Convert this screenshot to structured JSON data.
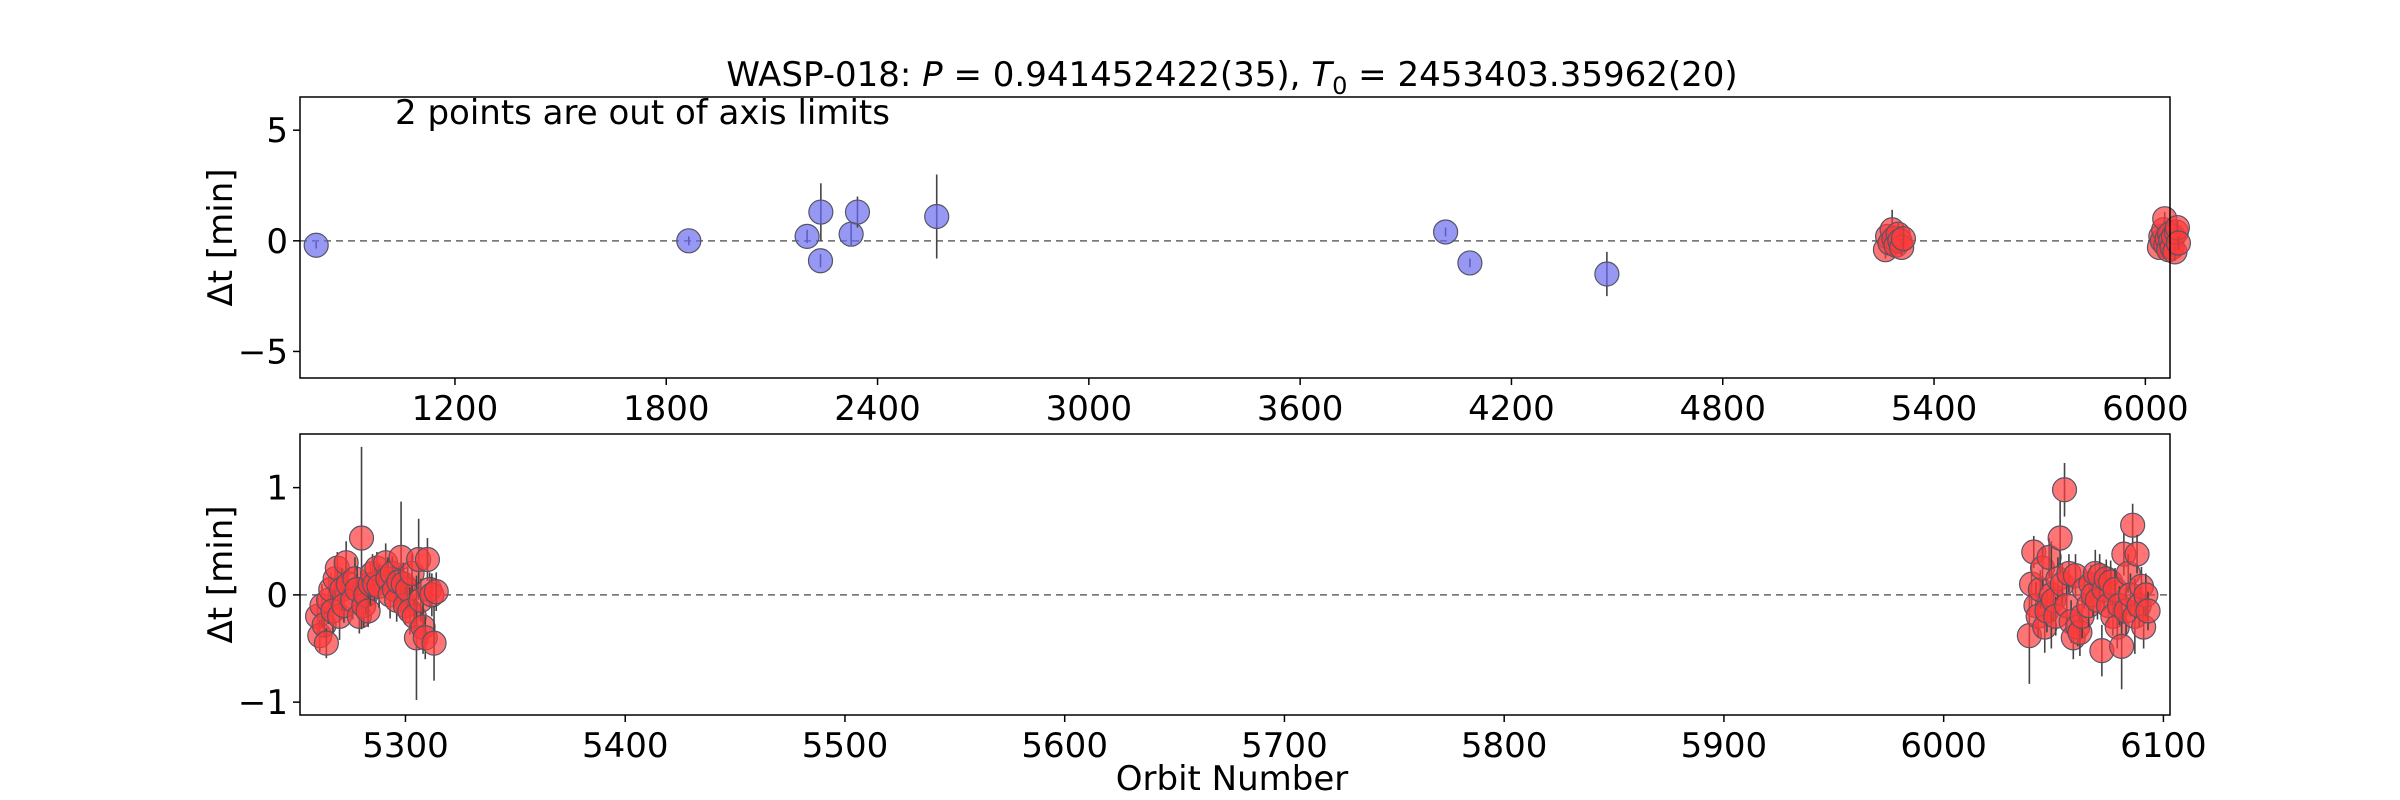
{
  "chart_data": [
    {
      "type": "scatter",
      "title": "WASP-018: $P = 0.941452422(35), T_0 = 2453403.35962(20)",
      "title_parts": {
        "prefix": "WASP-018: ",
        "p_symbol": "P",
        "p_value": " = 0.941452422(35), ",
        "t_symbol": "T",
        "t_sub": "0",
        "t_value": " = 2453403.35962(20)"
      },
      "annotation": "2 points are out of axis limits",
      "xlabel": "",
      "ylabel": "Δt [min]",
      "xlim": [
        760,
        6070
      ],
      "ylim": [
        -6.2,
        6.5
      ],
      "xticks": [
        1200,
        1800,
        2400,
        3000,
        3600,
        4200,
        4800,
        5400,
        6000
      ],
      "yticks": [
        -5,
        0,
        5
      ],
      "reference_line": 0,
      "grid": false,
      "series": [
        {
          "color": "#6b6bef",
          "points": [
            {
              "x": 806,
              "y": -0.2,
              "err": 0.15
            },
            {
              "x": 1864,
              "y": 0.0,
              "err": 0.2
            },
            {
              "x": 2200,
              "y": 0.2,
              "err": 0.3
            },
            {
              "x": 2238,
              "y": -0.9,
              "err": 0.3
            },
            {
              "x": 2239,
              "y": 1.3,
              "err": 1.3
            },
            {
              "x": 2325,
              "y": 0.3,
              "err": 0.5
            },
            {
              "x": 2343,
              "y": 1.3,
              "err": 0.7
            },
            {
              "x": 2568,
              "y": 1.1,
              "err": 1.9
            },
            {
              "x": 4013,
              "y": 0.4,
              "err": 0.2
            },
            {
              "x": 4082,
              "y": -1.0,
              "err": 0.2
            },
            {
              "x": 4471,
              "y": -1.5,
              "err": 1.0
            }
          ]
        },
        {
          "color": "#ff3b3b",
          "points": [
            {
              "x": 5262,
              "y": -0.4,
              "err": 0.4
            },
            {
              "x": 5268,
              "y": 0.2,
              "err": 0.4
            },
            {
              "x": 5275,
              "y": -0.1,
              "err": 0.5
            },
            {
              "x": 5281,
              "y": 0.5,
              "err": 0.9
            },
            {
              "x": 5286,
              "y": 0.1,
              "err": 0.3
            },
            {
              "x": 5292,
              "y": -0.2,
              "err": 0.4
            },
            {
              "x": 5298,
              "y": 0.3,
              "err": 0.5
            },
            {
              "x": 5303,
              "y": 0.0,
              "err": 0.6
            },
            {
              "x": 5308,
              "y": -0.3,
              "err": 0.4
            },
            {
              "x": 5313,
              "y": 0.1,
              "err": 0.5
            },
            {
              "x": 6040,
              "y": -0.3,
              "err": 0.4
            },
            {
              "x": 6044,
              "y": 0.2,
              "err": 0.4
            },
            {
              "x": 6048,
              "y": 0.0,
              "err": 0.5
            },
            {
              "x": 6052,
              "y": 0.5,
              "err": 0.4
            },
            {
              "x": 6055,
              "y": 1.0,
              "err": 0.3
            },
            {
              "x": 6058,
              "y": -0.2,
              "err": 0.4
            },
            {
              "x": 6062,
              "y": 0.1,
              "err": 0.4
            },
            {
              "x": 6066,
              "y": -0.4,
              "err": 0.3
            },
            {
              "x": 6069,
              "y": 0.3,
              "err": 0.5
            },
            {
              "x": 6072,
              "y": 0.0,
              "err": 0.4
            },
            {
              "x": 6076,
              "y": -0.3,
              "err": 0.4
            },
            {
              "x": 6080,
              "y": 0.2,
              "err": 0.3
            },
            {
              "x": 6084,
              "y": -0.5,
              "err": 0.4
            },
            {
              "x": 6088,
              "y": 0.4,
              "err": 0.5
            },
            {
              "x": 6091,
              "y": 0.6,
              "err": 0.3
            },
            {
              "x": 6094,
              "y": -0.1,
              "err": 0.3
            }
          ]
        }
      ]
    },
    {
      "type": "scatter",
      "title": "",
      "xlabel": "Orbit Number",
      "ylabel": "Δt [min]",
      "xlim": [
        5252,
        6103
      ],
      "ylim": [
        -1.12,
        1.5
      ],
      "xticks": [
        5300,
        5400,
        5500,
        5600,
        5700,
        5800,
        5900,
        6000,
        6100
      ],
      "yticks": [
        -1,
        0,
        1
      ],
      "reference_line": 0,
      "grid": false,
      "series": [
        {
          "color": "#ff3b3b",
          "points": [
            {
              "x": 5260,
              "y": -0.2,
              "err": 0.18
            },
            {
              "x": 5261,
              "y": -0.38,
              "err": 0.15
            },
            {
              "x": 5262,
              "y": -0.1,
              "err": 0.2
            },
            {
              "x": 5263,
              "y": -0.28,
              "err": 0.12
            },
            {
              "x": 5264,
              "y": -0.45,
              "err": 0.14
            },
            {
              "x": 5265,
              "y": -0.05,
              "err": 0.22
            },
            {
              "x": 5266,
              "y": 0.05,
              "err": 0.16
            },
            {
              "x": 5267,
              "y": -0.15,
              "err": 0.2
            },
            {
              "x": 5268,
              "y": 0.15,
              "err": 0.18
            },
            {
              "x": 5269,
              "y": 0.25,
              "err": 0.15
            },
            {
              "x": 5270,
              "y": -0.2,
              "err": 0.22
            },
            {
              "x": 5271,
              "y": 0.05,
              "err": 0.2
            },
            {
              "x": 5272,
              "y": -0.1,
              "err": 0.16
            },
            {
              "x": 5273,
              "y": 0.3,
              "err": 0.2
            },
            {
              "x": 5274,
              "y": 0.1,
              "err": 0.14
            },
            {
              "x": 5276,
              "y": -0.05,
              "err": 0.18
            },
            {
              "x": 5277,
              "y": 0.15,
              "err": 0.2
            },
            {
              "x": 5278,
              "y": 0.05,
              "err": 0.22
            },
            {
              "x": 5279,
              "y": -0.2,
              "err": 0.16
            },
            {
              "x": 5280,
              "y": 0.53,
              "err": 0.85
            },
            {
              "x": 5281,
              "y": -0.1,
              "err": 0.2
            },
            {
              "x": 5282,
              "y": 0.0,
              "err": 0.18
            },
            {
              "x": 5283,
              "y": -0.15,
              "err": 0.15
            },
            {
              "x": 5284,
              "y": 0.1,
              "err": 0.2
            },
            {
              "x": 5285,
              "y": 0.2,
              "err": 0.18
            },
            {
              "x": 5286,
              "y": 0.1,
              "err": 0.16
            },
            {
              "x": 5287,
              "y": 0.25,
              "err": 0.15
            },
            {
              "x": 5288,
              "y": 0.08,
              "err": 0.2
            },
            {
              "x": 5291,
              "y": 0.3,
              "err": 0.18
            },
            {
              "x": 5292,
              "y": 0.15,
              "err": 0.2
            },
            {
              "x": 5293,
              "y": 0.0,
              "err": 0.22
            },
            {
              "x": 5294,
              "y": 0.2,
              "err": 0.16
            },
            {
              "x": 5295,
              "y": 0.05,
              "err": 0.18
            },
            {
              "x": 5296,
              "y": -0.05,
              "err": 0.2
            },
            {
              "x": 5297,
              "y": 0.12,
              "err": 0.15
            },
            {
              "x": 5298,
              "y": 0.35,
              "err": 0.52
            },
            {
              "x": 5299,
              "y": 0.1,
              "err": 0.2
            },
            {
              "x": 5300,
              "y": -0.1,
              "err": 0.18
            },
            {
              "x": 5301,
              "y": 0.05,
              "err": 0.2
            },
            {
              "x": 5302,
              "y": -0.15,
              "err": 0.22
            },
            {
              "x": 5303,
              "y": 0.2,
              "err": 0.18
            },
            {
              "x": 5304,
              "y": -0.2,
              "err": 0.16
            },
            {
              "x": 5305,
              "y": -0.4,
              "err": 0.58
            },
            {
              "x": 5306,
              "y": 0.33,
              "err": 0.38
            },
            {
              "x": 5307,
              "y": -0.05,
              "err": 0.2
            },
            {
              "x": 5308,
              "y": -0.3,
              "err": 0.25
            },
            {
              "x": 5309,
              "y": -0.4,
              "err": 0.2
            },
            {
              "x": 5310,
              "y": 0.33,
              "err": 0.2
            },
            {
              "x": 5311,
              "y": 0.05,
              "err": 0.16
            },
            {
              "x": 5312,
              "y": 0.0,
              "err": 0.2
            },
            {
              "x": 5313,
              "y": -0.45,
              "err": 0.35
            },
            {
              "x": 5314,
              "y": 0.03,
              "err": 0.18
            },
            {
              "x": 6039,
              "y": -0.38,
              "err": 0.45
            },
            {
              "x": 6040,
              "y": 0.1,
              "err": 0.2
            },
            {
              "x": 6041,
              "y": 0.4,
              "err": 0.15
            },
            {
              "x": 6042,
              "y": -0.1,
              "err": 0.22
            },
            {
              "x": 6043,
              "y": -0.2,
              "err": 0.2
            },
            {
              "x": 6044,
              "y": 0.05,
              "err": 0.18
            },
            {
              "x": 6045,
              "y": 0.25,
              "err": 0.2
            },
            {
              "x": 6046,
              "y": -0.3,
              "err": 0.24
            },
            {
              "x": 6047,
              "y": -0.15,
              "err": 0.2
            },
            {
              "x": 6048,
              "y": 0.35,
              "err": 0.18
            },
            {
              "x": 6049,
              "y": 0.0,
              "err": 0.5
            },
            {
              "x": 6050,
              "y": -0.05,
              "err": 0.2
            },
            {
              "x": 6051,
              "y": -0.2,
              "err": 0.18
            },
            {
              "x": 6052,
              "y": 0.15,
              "err": 0.2
            },
            {
              "x": 6053,
              "y": 0.53,
              "err": 0.35
            },
            {
              "x": 6054,
              "y": 0.1,
              "err": 0.2
            },
            {
              "x": 6055,
              "y": 0.98,
              "err": 0.25
            },
            {
              "x": 6056,
              "y": -0.1,
              "err": 0.2
            },
            {
              "x": 6057,
              "y": 0.2,
              "err": 0.18
            },
            {
              "x": 6058,
              "y": -0.25,
              "err": 0.2
            },
            {
              "x": 6059,
              "y": -0.4,
              "err": 0.2
            },
            {
              "x": 6060,
              "y": 0.18,
              "err": 0.2
            },
            {
              "x": 6061,
              "y": -0.3,
              "err": 0.18
            },
            {
              "x": 6062,
              "y": -0.35,
              "err": 0.22
            },
            {
              "x": 6063,
              "y": -0.2,
              "err": 0.2
            },
            {
              "x": 6064,
              "y": 0.05,
              "err": 0.18
            },
            {
              "x": 6066,
              "y": -0.1,
              "err": 0.2
            },
            {
              "x": 6067,
              "y": 0.1,
              "err": 0.18
            },
            {
              "x": 6068,
              "y": 0.0,
              "err": 0.2
            },
            {
              "x": 6069,
              "y": 0.2,
              "err": 0.22
            },
            {
              "x": 6070,
              "y": -0.05,
              "err": 0.18
            },
            {
              "x": 6071,
              "y": 0.18,
              "err": 0.2
            },
            {
              "x": 6072,
              "y": -0.52,
              "err": 0.24
            },
            {
              "x": 6073,
              "y": 0.05,
              "err": 0.2
            },
            {
              "x": 6074,
              "y": 0.15,
              "err": 0.18
            },
            {
              "x": 6075,
              "y": -0.1,
              "err": 0.2
            },
            {
              "x": 6076,
              "y": 0.12,
              "err": 0.2
            },
            {
              "x": 6077,
              "y": -0.2,
              "err": 0.18
            },
            {
              "x": 6078,
              "y": 0.05,
              "err": 0.2
            },
            {
              "x": 6079,
              "y": -0.3,
              "err": 0.2
            },
            {
              "x": 6080,
              "y": -0.1,
              "err": 0.18
            },
            {
              "x": 6081,
              "y": -0.48,
              "err": 0.4
            },
            {
              "x": 6082,
              "y": 0.38,
              "err": 0.2
            },
            {
              "x": 6083,
              "y": -0.15,
              "err": 0.22
            },
            {
              "x": 6084,
              "y": 0.2,
              "err": 0.18
            },
            {
              "x": 6085,
              "y": 0.0,
              "err": 0.2
            },
            {
              "x": 6086,
              "y": 0.65,
              "err": 0.2
            },
            {
              "x": 6087,
              "y": -0.2,
              "err": 0.35
            },
            {
              "x": 6088,
              "y": 0.38,
              "err": 0.18
            },
            {
              "x": 6089,
              "y": -0.1,
              "err": 0.2
            },
            {
              "x": 6090,
              "y": 0.08,
              "err": 0.18
            },
            {
              "x": 6091,
              "y": -0.3,
              "err": 0.2
            },
            {
              "x": 6092,
              "y": 0.0,
              "err": 0.2
            },
            {
              "x": 6093,
              "y": -0.15,
              "err": 0.18
            }
          ]
        }
      ]
    }
  ],
  "colors": {
    "blue_fill": "#6b6bef",
    "red_fill": "#ff3b3b",
    "marker_edge": "#555566",
    "errorbar": "#444444",
    "refline": "#666666"
  }
}
